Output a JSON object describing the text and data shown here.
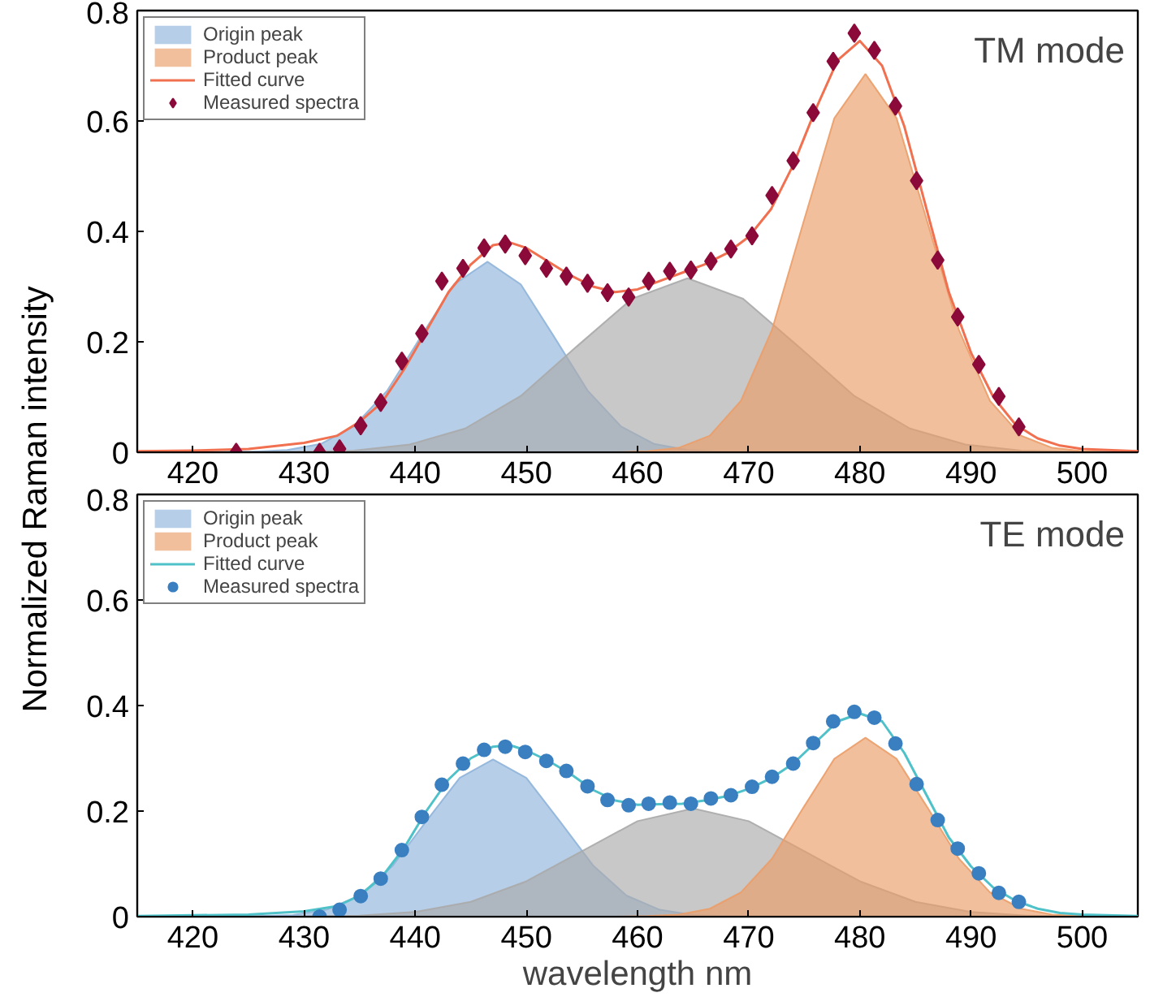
{
  "chart_data": [
    {
      "type": "area",
      "ylabel": "Normalized Raman intensity",
      "annotations": [
        "TM mode"
      ],
      "xlim": [
        415,
        505
      ],
      "ylim": [
        0,
        0.8
      ],
      "xticks": [
        420,
        430,
        440,
        450,
        460,
        470,
        480,
        490,
        500
      ],
      "yticks": [
        0,
        0.2,
        0.4,
        0.6,
        0.8
      ],
      "grid": false,
      "legend": "top left",
      "series": [
        {
          "name": "Origin peak",
          "color": "#8fb4da",
          "x": [
            422.5,
            425.5,
            428.5,
            431.5,
            434.5,
            437.5,
            440.5,
            443.5,
            446.5,
            449.5,
            452.5,
            455.5,
            458.5,
            461.5,
            464.5,
            467.5,
            470.5
          ],
          "values": [
            0,
            0.001,
            0.004,
            0.015,
            0.047,
            0.112,
            0.209,
            0.304,
            0.345,
            0.304,
            0.209,
            0.112,
            0.047,
            0.015,
            0.004,
            0.001,
            0
          ]
        },
        {
          "color": "#aaaaaa",
          "x": [
            424.5,
            429.5,
            434.5,
            439.5,
            444.5,
            449.5,
            454.5,
            459.5,
            464.5,
            469.5,
            474.5,
            479.5,
            484.5,
            489.5,
            494.5,
            499.5,
            504.5
          ],
          "values": [
            0,
            0.001,
            0.003,
            0.014,
            0.043,
            0.102,
            0.191,
            0.278,
            0.315,
            0.278,
            0.191,
            0.102,
            0.043,
            0.014,
            0.003,
            0.001,
            0
          ]
        },
        {
          "name": "Product peak",
          "color": "#eb9d68",
          "x": [
            458.1,
            460.9,
            463.7,
            466.5,
            469.3,
            472.1,
            474.9,
            477.7,
            480.5,
            483.3,
            486.1,
            488.9,
            491.7,
            494.5,
            497.3,
            500.1,
            502.9
          ],
          "values": [
            0,
            0.002,
            0.008,
            0.03,
            0.093,
            0.222,
            0.415,
            0.605,
            0.685,
            0.605,
            0.415,
            0.222,
            0.093,
            0.03,
            0.008,
            0.002,
            0
          ]
        },
        {
          "name": "Fitted curve",
          "type": "line",
          "color": "#f07050",
          "x": [
            415,
            420,
            425,
            430,
            433,
            435,
            437,
            439,
            441,
            443,
            445,
            447,
            448.5,
            450,
            452,
            454,
            456,
            458,
            460,
            462,
            464,
            466,
            468,
            470,
            472,
            474,
            476,
            478,
            480,
            482,
            484,
            486,
            488,
            490,
            492,
            494,
            496,
            498,
            500,
            505
          ],
          "values": [
            0.002,
            0.003,
            0.006,
            0.017,
            0.03,
            0.055,
            0.09,
            0.15,
            0.22,
            0.29,
            0.34,
            0.375,
            0.38,
            0.37,
            0.345,
            0.32,
            0.3,
            0.29,
            0.295,
            0.31,
            0.325,
            0.34,
            0.36,
            0.39,
            0.44,
            0.52,
            0.62,
            0.71,
            0.745,
            0.7,
            0.59,
            0.44,
            0.29,
            0.18,
            0.1,
            0.05,
            0.025,
            0.012,
            0.006,
            0.002
          ]
        },
        {
          "name": "Measured spectra",
          "type": "scatter",
          "marker": "diamond",
          "color": "#8b0a3a",
          "x": [
            423.9,
            431.4,
            433.2,
            435.1,
            436.9,
            438.8,
            440.6,
            442.4,
            444.3,
            446.2,
            448.1,
            449.9,
            451.8,
            453.6,
            455.5,
            457.3,
            459.2,
            461.0,
            462.9,
            464.8,
            466.6,
            468.4,
            470.3,
            472.1,
            474.0,
            475.8,
            477.6,
            479.5,
            481.3,
            483.2,
            485.1,
            487.0,
            488.8,
            490.7,
            492.5,
            494.3
          ],
          "values": [
            0,
            0,
            0.006,
            0.048,
            0.09,
            0.165,
            0.215,
            0.31,
            0.333,
            0.37,
            0.377,
            0.356,
            0.333,
            0.319,
            0.306,
            0.289,
            0.281,
            0.31,
            0.328,
            0.33,
            0.346,
            0.368,
            0.392,
            0.465,
            0.528,
            0.615,
            0.708,
            0.759,
            0.728,
            0.627,
            0.492,
            0.348,
            0.245,
            0.159,
            0.101,
            0.046
          ]
        }
      ]
    },
    {
      "type": "area",
      "xlabel": "wavelength nm",
      "annotations": [
        "TE mode"
      ],
      "xlim": [
        415,
        505
      ],
      "ylim": [
        0,
        0.8
      ],
      "xticks": [
        420,
        430,
        440,
        450,
        460,
        470,
        480,
        490,
        500
      ],
      "yticks": [
        0,
        0.2,
        0.4,
        0.6,
        0.8
      ],
      "grid": false,
      "legend": "top left",
      "series": [
        {
          "name": "Origin peak",
          "color": "#8fb4da",
          "x": [
            423,
            426,
            429,
            432,
            435,
            438,
            441,
            444,
            447,
            450,
            453,
            456,
            459,
            462,
            465,
            468,
            471
          ],
          "values": [
            0,
            0.001,
            0.003,
            0.013,
            0.04,
            0.097,
            0.181,
            0.263,
            0.298,
            0.263,
            0.181,
            0.097,
            0.04,
            0.013,
            0.003,
            0.001,
            0
          ]
        },
        {
          "color": "#aaaaaa",
          "x": [
            425,
            430,
            435,
            440,
            445,
            450,
            455,
            460,
            465,
            470,
            475,
            480,
            485,
            490,
            495,
            500,
            505
          ],
          "values": [
            0,
            0,
            0.002,
            0.009,
            0.028,
            0.067,
            0.124,
            0.181,
            0.205,
            0.181,
            0.124,
            0.067,
            0.028,
            0.009,
            0.002,
            0,
            0
          ]
        },
        {
          "name": "Product peak",
          "color": "#eb9d68",
          "x": [
            458.1,
            460.9,
            463.7,
            466.5,
            469.3,
            472.1,
            474.9,
            477.7,
            480.5,
            483.3,
            486.1,
            488.9,
            491.7,
            494.5,
            497.3,
            500.1,
            502.9
          ],
          "values": [
            0,
            0.001,
            0.004,
            0.015,
            0.046,
            0.11,
            0.206,
            0.299,
            0.339,
            0.299,
            0.206,
            0.11,
            0.046,
            0.015,
            0.004,
            0.001,
            0
          ]
        },
        {
          "name": "Fitted curve",
          "type": "line",
          "color": "#4fc1c8",
          "x": [
            415,
            425,
            430,
            433,
            435,
            437,
            439,
            441,
            443,
            445,
            447,
            448.5,
            450,
            452,
            454,
            456,
            458,
            460,
            462,
            464,
            466,
            468,
            470,
            472,
            474,
            476,
            478,
            480,
            482,
            484,
            486,
            488,
            490,
            492,
            494,
            496,
            498,
            500,
            505
          ],
          "values": [
            0.001,
            0.004,
            0.01,
            0.02,
            0.04,
            0.075,
            0.13,
            0.2,
            0.26,
            0.3,
            0.322,
            0.325,
            0.315,
            0.295,
            0.27,
            0.24,
            0.22,
            0.212,
            0.213,
            0.214,
            0.22,
            0.228,
            0.242,
            0.262,
            0.29,
            0.33,
            0.37,
            0.385,
            0.37,
            0.31,
            0.23,
            0.15,
            0.095,
            0.055,
            0.03,
            0.015,
            0.007,
            0.004,
            0.001
          ]
        },
        {
          "name": "Measured spectra",
          "type": "scatter",
          "marker": "circle",
          "color": "#3a7fc0",
          "x": [
            431.4,
            433.2,
            435.1,
            436.9,
            438.8,
            440.6,
            442.4,
            444.3,
            446.2,
            448.1,
            449.9,
            451.8,
            453.6,
            455.5,
            457.3,
            459.2,
            461.0,
            462.9,
            464.8,
            466.6,
            468.4,
            470.3,
            472.1,
            474.0,
            475.8,
            477.6,
            479.5,
            481.3,
            483.2,
            485.1,
            487.0,
            488.8,
            490.7,
            492.5,
            494.3
          ],
          "values": [
            0,
            0.013,
            0.039,
            0.072,
            0.126,
            0.189,
            0.25,
            0.29,
            0.316,
            0.322,
            0.312,
            0.295,
            0.276,
            0.247,
            0.221,
            0.211,
            0.214,
            0.216,
            0.214,
            0.224,
            0.23,
            0.246,
            0.265,
            0.29,
            0.329,
            0.37,
            0.388,
            0.377,
            0.328,
            0.251,
            0.183,
            0.129,
            0.082,
            0.045,
            0.028
          ]
        }
      ]
    }
  ]
}
